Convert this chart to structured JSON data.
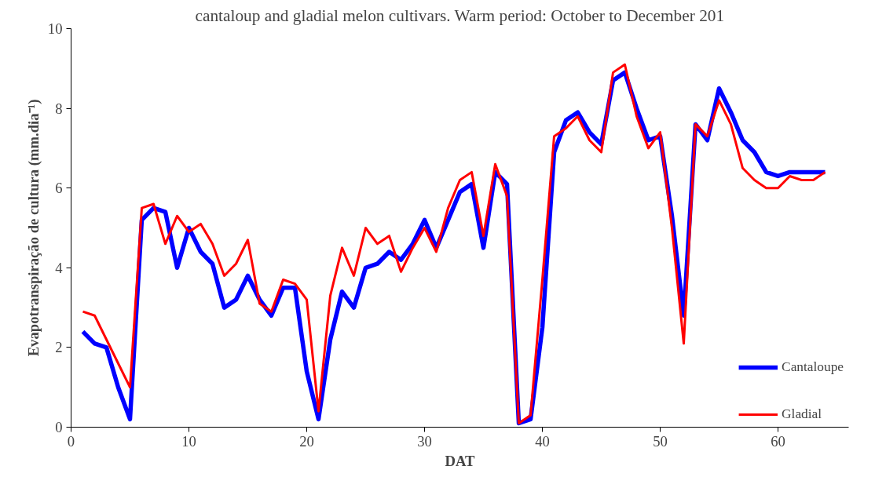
{
  "chart_data": {
    "type": "line",
    "title": "cantaloup and gladial melon cultivars. Warm period: October to December 201",
    "xlabel": "DAT",
    "ylabel": "Evapotranspiração de cultura (mm.dia⁻¹)",
    "x": [
      1,
      2,
      3,
      4,
      5,
      6,
      7,
      8,
      9,
      10,
      11,
      12,
      13,
      14,
      15,
      16,
      17,
      18,
      19,
      20,
      21,
      22,
      23,
      24,
      25,
      26,
      27,
      28,
      29,
      30,
      31,
      32,
      33,
      34,
      35,
      36,
      37,
      38,
      39,
      40,
      41,
      42,
      43,
      44,
      45,
      46,
      47,
      48,
      49,
      50,
      51,
      52,
      53,
      54,
      55,
      56,
      57,
      58,
      59,
      60,
      61,
      62,
      63,
      64
    ],
    "series": [
      {
        "name": "Cantaloupe",
        "color": "#0000ff",
        "values": [
          2.4,
          2.1,
          2.0,
          1.0,
          0.2,
          5.2,
          5.5,
          5.4,
          4.0,
          5.0,
          4.4,
          4.1,
          3.0,
          3.2,
          3.8,
          3.2,
          2.8,
          3.5,
          3.5,
          1.4,
          0.2,
          2.2,
          3.4,
          3.0,
          4.0,
          4.1,
          4.4,
          4.2,
          4.6,
          5.2,
          4.5,
          5.2,
          5.9,
          6.1,
          4.5,
          6.4,
          6.1,
          0.1,
          0.2,
          2.5,
          6.9,
          7.7,
          7.9,
          7.4,
          7.1,
          8.7,
          8.9,
          8.0,
          7.2,
          7.3,
          5.3,
          2.8,
          7.6,
          7.2,
          8.5,
          7.9,
          7.2,
          6.9,
          6.4,
          6.3,
          6.4,
          6.4,
          6.4,
          6.4
        ]
      },
      {
        "name": "Gladial",
        "color": "#ff0000",
        "values": [
          2.9,
          2.8,
          2.2,
          1.6,
          1.0,
          5.5,
          5.6,
          4.6,
          5.3,
          4.9,
          5.1,
          4.6,
          3.8,
          4.1,
          4.7,
          3.1,
          2.9,
          3.7,
          3.6,
          3.2,
          0.4,
          3.3,
          4.5,
          3.8,
          5.0,
          4.6,
          4.8,
          3.9,
          4.5,
          5.0,
          4.4,
          5.5,
          6.2,
          6.4,
          4.8,
          6.6,
          5.8,
          0.1,
          0.3,
          3.7,
          7.3,
          7.5,
          7.8,
          7.2,
          6.9,
          8.9,
          9.1,
          7.8,
          7.0,
          7.4,
          5.0,
          2.1,
          7.6,
          7.3,
          8.2,
          7.6,
          6.5,
          6.2,
          6.0,
          6.0,
          6.3,
          6.2,
          6.2,
          6.4
        ]
      }
    ],
    "xlim": [
      0,
      66
    ],
    "xticks": [
      0,
      10,
      20,
      30,
      40,
      50,
      60
    ],
    "ylim": [
      0,
      10
    ],
    "yticks": [
      0,
      2,
      4,
      6,
      8,
      10
    ],
    "grid": false,
    "legend": "bottom right",
    "marker": "none",
    "line_style": "solid"
  }
}
